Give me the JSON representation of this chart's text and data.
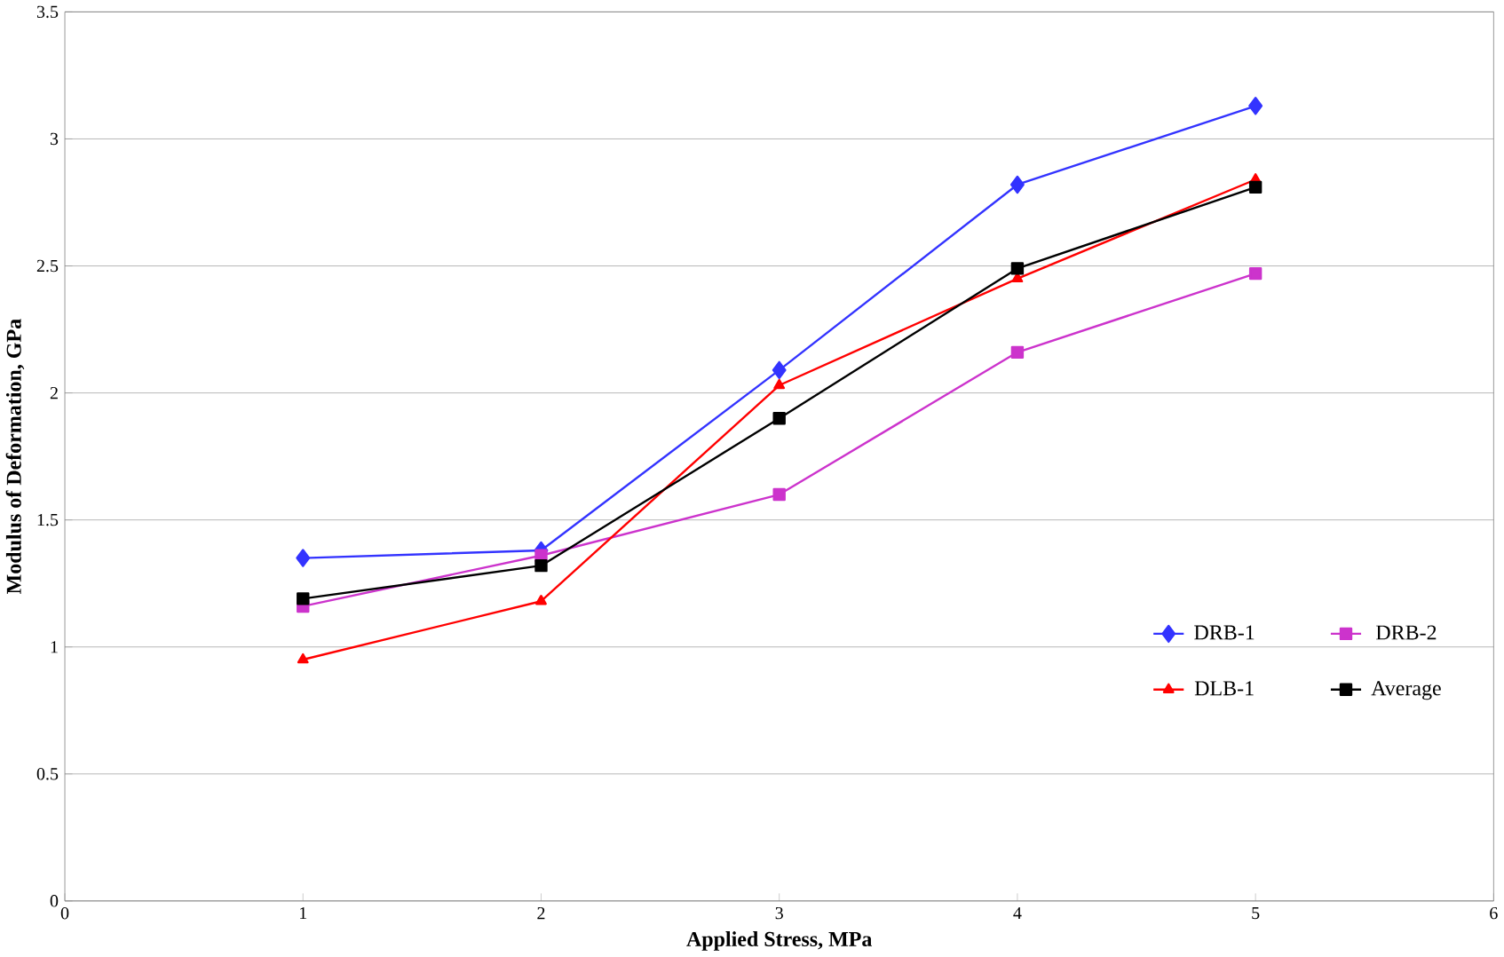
{
  "chart_data": {
    "type": "line",
    "xlabel": "Applied Stress, MPa",
    "ylabel": "Modulus of Deformation, GPa",
    "x": [
      1,
      2,
      3,
      4,
      5
    ],
    "series": [
      {
        "name": "DRB-1",
        "color": "#3333ff",
        "marker": "diamond",
        "values": [
          1.35,
          1.38,
          2.09,
          2.82,
          3.13
        ]
      },
      {
        "name": "DRB-2",
        "color": "#cc33cc",
        "marker": "square",
        "values": [
          1.16,
          1.36,
          1.6,
          2.16,
          2.47
        ]
      },
      {
        "name": "DLB-1",
        "color": "#ff0000",
        "marker": "triangle",
        "values": [
          0.95,
          1.18,
          2.03,
          2.45,
          2.84
        ]
      },
      {
        "name": "Average",
        "color": "#000000",
        "marker": "square",
        "values": [
          1.19,
          1.32,
          1.9,
          2.49,
          2.81
        ]
      }
    ],
    "xlim": [
      0,
      6
    ],
    "xticks": [
      0,
      1,
      2,
      3,
      4,
      5,
      6
    ],
    "ylim": [
      0,
      3.5
    ],
    "yticks": [
      0,
      0.5,
      1,
      1.5,
      2,
      2.5,
      3,
      3.5
    ],
    "grid": "y",
    "legend": "right",
    "line_style": "solid"
  }
}
